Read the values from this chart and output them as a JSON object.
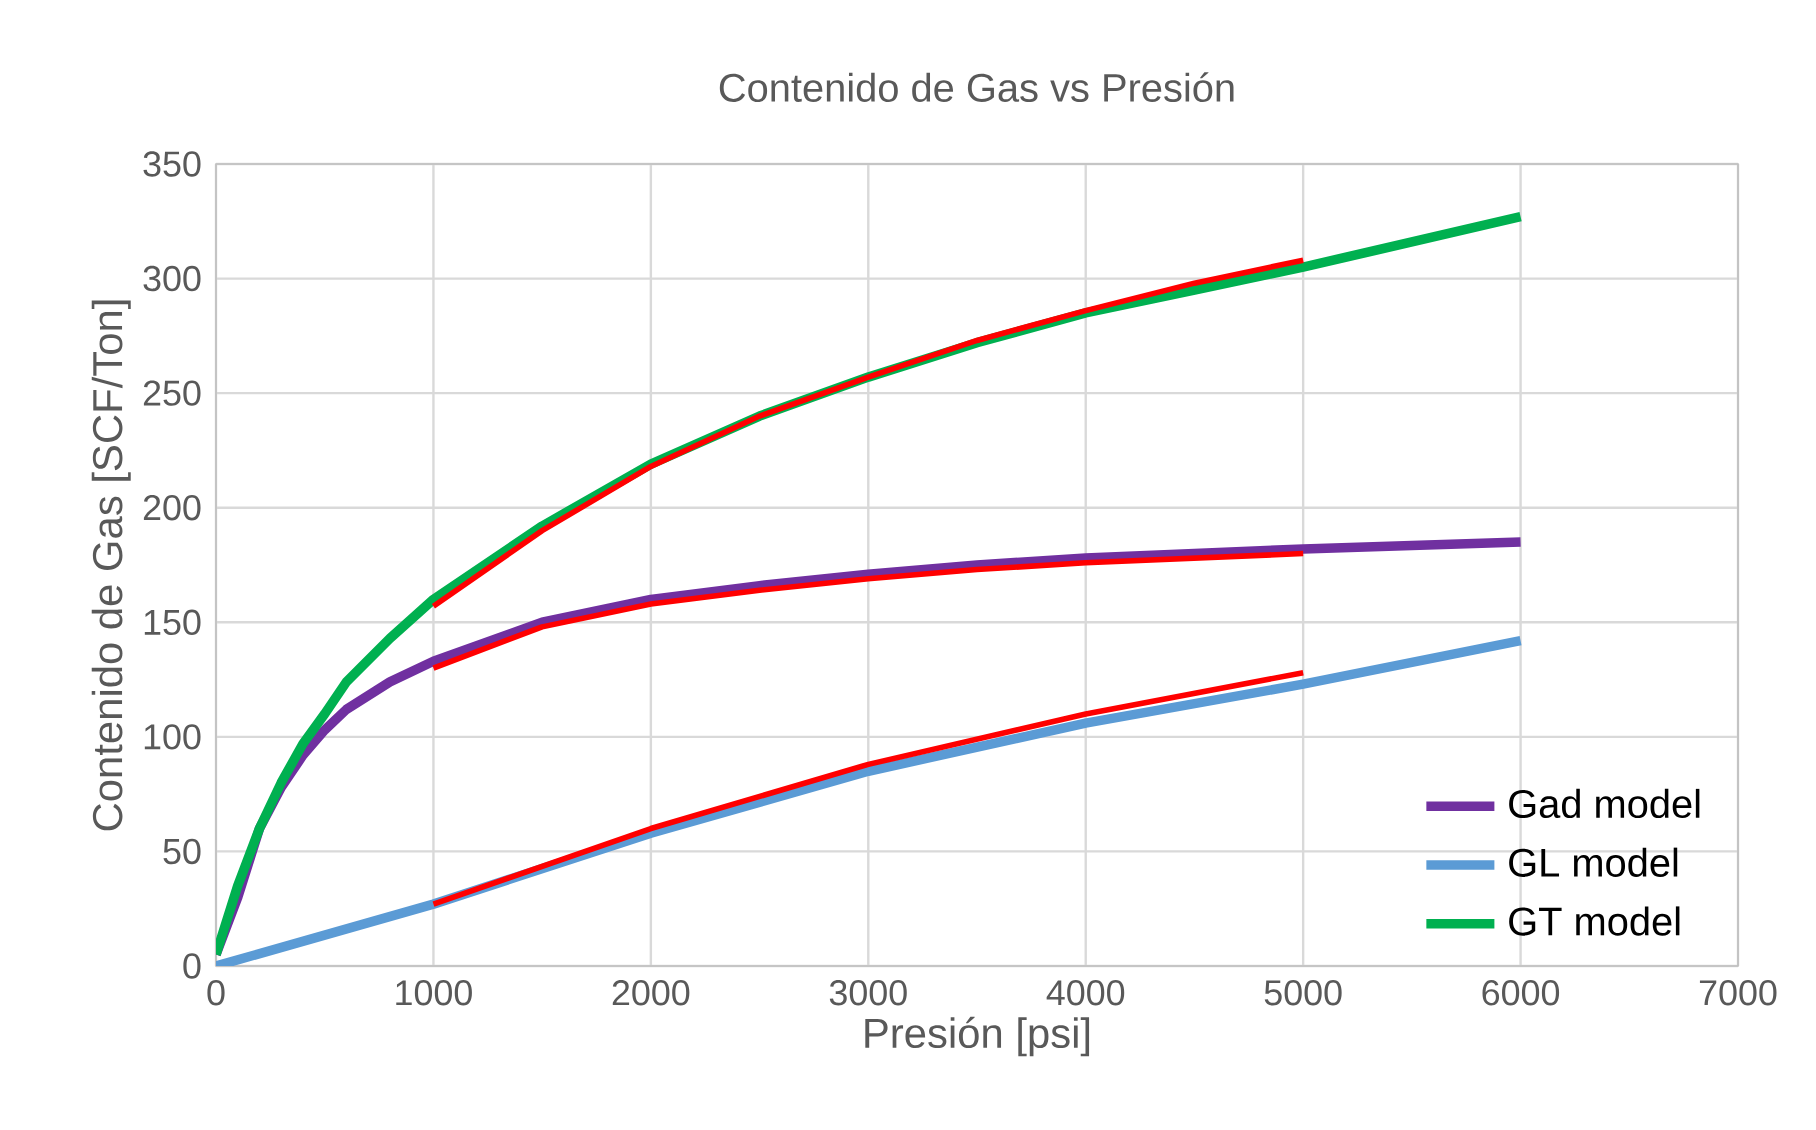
{
  "chart_data": {
    "type": "line",
    "title": "Contenido de Gas vs Presión",
    "xlabel": "Presión [psi]",
    "ylabel": "Contenido de Gas [SCF/Ton]",
    "xlim": [
      0,
      7000
    ],
    "xticks": [
      0,
      1000,
      2000,
      3000,
      4000,
      5000,
      6000,
      7000
    ],
    "ylim": [
      0,
      350
    ],
    "yticks": [
      0,
      50,
      100,
      150,
      200,
      250,
      300,
      350
    ],
    "grid": true,
    "legend": "bottom right",
    "marker": "none",
    "line_style": "solid",
    "series": [
      {
        "name": "Gad model",
        "color": "#7030a0",
        "x": [
          0,
          100,
          200,
          300,
          400,
          500,
          600,
          800,
          1000,
          1500,
          2000,
          2500,
          3000,
          3500,
          4000,
          4500,
          5000,
          6000
        ],
        "values": [
          5,
          30,
          60,
          78,
          92,
          103,
          112,
          124,
          133,
          150,
          160,
          166,
          171,
          175,
          178,
          180,
          182,
          185
        ]
      },
      {
        "name": "GL model",
        "color": "#5b9bd5",
        "x": [
          0,
          1000,
          2000,
          3000,
          4000,
          5000,
          6000
        ],
        "values": [
          0,
          27,
          58,
          85,
          106,
          123,
          142
        ]
      },
      {
        "name": "GT model",
        "color": "#00b050",
        "x": [
          0,
          100,
          200,
          300,
          400,
          500,
          600,
          800,
          1000,
          1500,
          2000,
          2500,
          3000,
          3500,
          4000,
          4500,
          5000,
          6000
        ],
        "values": [
          5,
          35,
          60,
          80,
          97,
          110,
          124,
          143,
          160,
          192,
          219,
          240,
          257,
          272,
          285,
          295,
          305,
          327
        ]
      },
      {
        "color": "#ff0000",
        "x": [
          1000,
          1500,
          2000,
          2500,
          3000,
          3500,
          4000,
          4500,
          5000
        ],
        "values": [
          157,
          190,
          218,
          240,
          257,
          273,
          286,
          298,
          308
        ]
      },
      {
        "color": "#ff0000",
        "x": [
          1000,
          1500,
          2000,
          2500,
          3000,
          3500,
          4000,
          4500,
          5000
        ],
        "values": [
          130,
          148,
          158,
          164,
          169,
          173,
          176,
          178,
          180
        ]
      },
      {
        "color": "#ff0000",
        "x": [
          1000,
          2000,
          3000,
          4000,
          5000
        ],
        "values": [
          27,
          60,
          88,
          110,
          128
        ]
      }
    ]
  }
}
